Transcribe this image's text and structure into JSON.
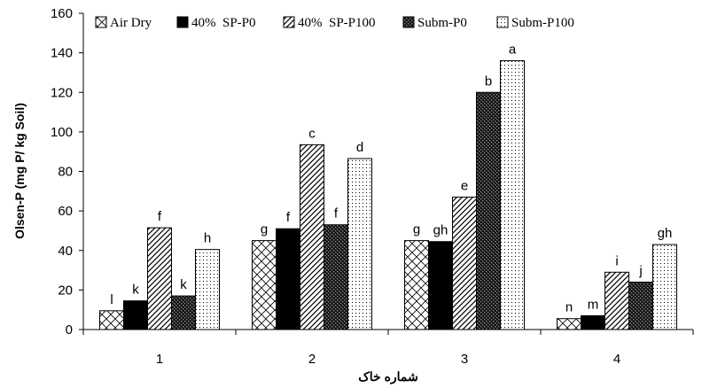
{
  "chart_data": {
    "type": "bar",
    "title": "",
    "xlabel": "شماره خاک",
    "ylabel": "Olsen-P (mg P/ kg Soil)",
    "ylim": [
      0,
      160
    ],
    "yticks": [
      0,
      20,
      40,
      60,
      80,
      100,
      120,
      140,
      160
    ],
    "categories": [
      "1",
      "2",
      "3",
      "4"
    ],
    "grid": false,
    "legend_position": "top",
    "series": [
      {
        "name": "Air Dry",
        "pattern": "crosshatch",
        "values": [
          9.5,
          45,
          45,
          5.5
        ],
        "labels": [
          "l",
          "g",
          "g",
          "n"
        ]
      },
      {
        "name": "40%  SP-P0",
        "pattern": "solid",
        "values": [
          14.5,
          51,
          44.5,
          7
        ],
        "labels": [
          "k",
          "f",
          "gh",
          "m"
        ]
      },
      {
        "name": "40%  SP-P100",
        "pattern": "diagonal",
        "values": [
          51.5,
          93.5,
          67,
          29
        ],
        "labels": [
          "f",
          "c",
          "e",
          "i"
        ]
      },
      {
        "name": "Subm-P0",
        "pattern": "checker",
        "values": [
          17,
          53,
          120,
          24
        ],
        "labels": [
          "k",
          "f",
          "b",
          "j"
        ]
      },
      {
        "name": "Subm-P100",
        "pattern": "dots",
        "values": [
          40.5,
          86.5,
          136,
          43
        ],
        "labels": [
          "h",
          "d",
          "a",
          "gh"
        ]
      }
    ]
  }
}
